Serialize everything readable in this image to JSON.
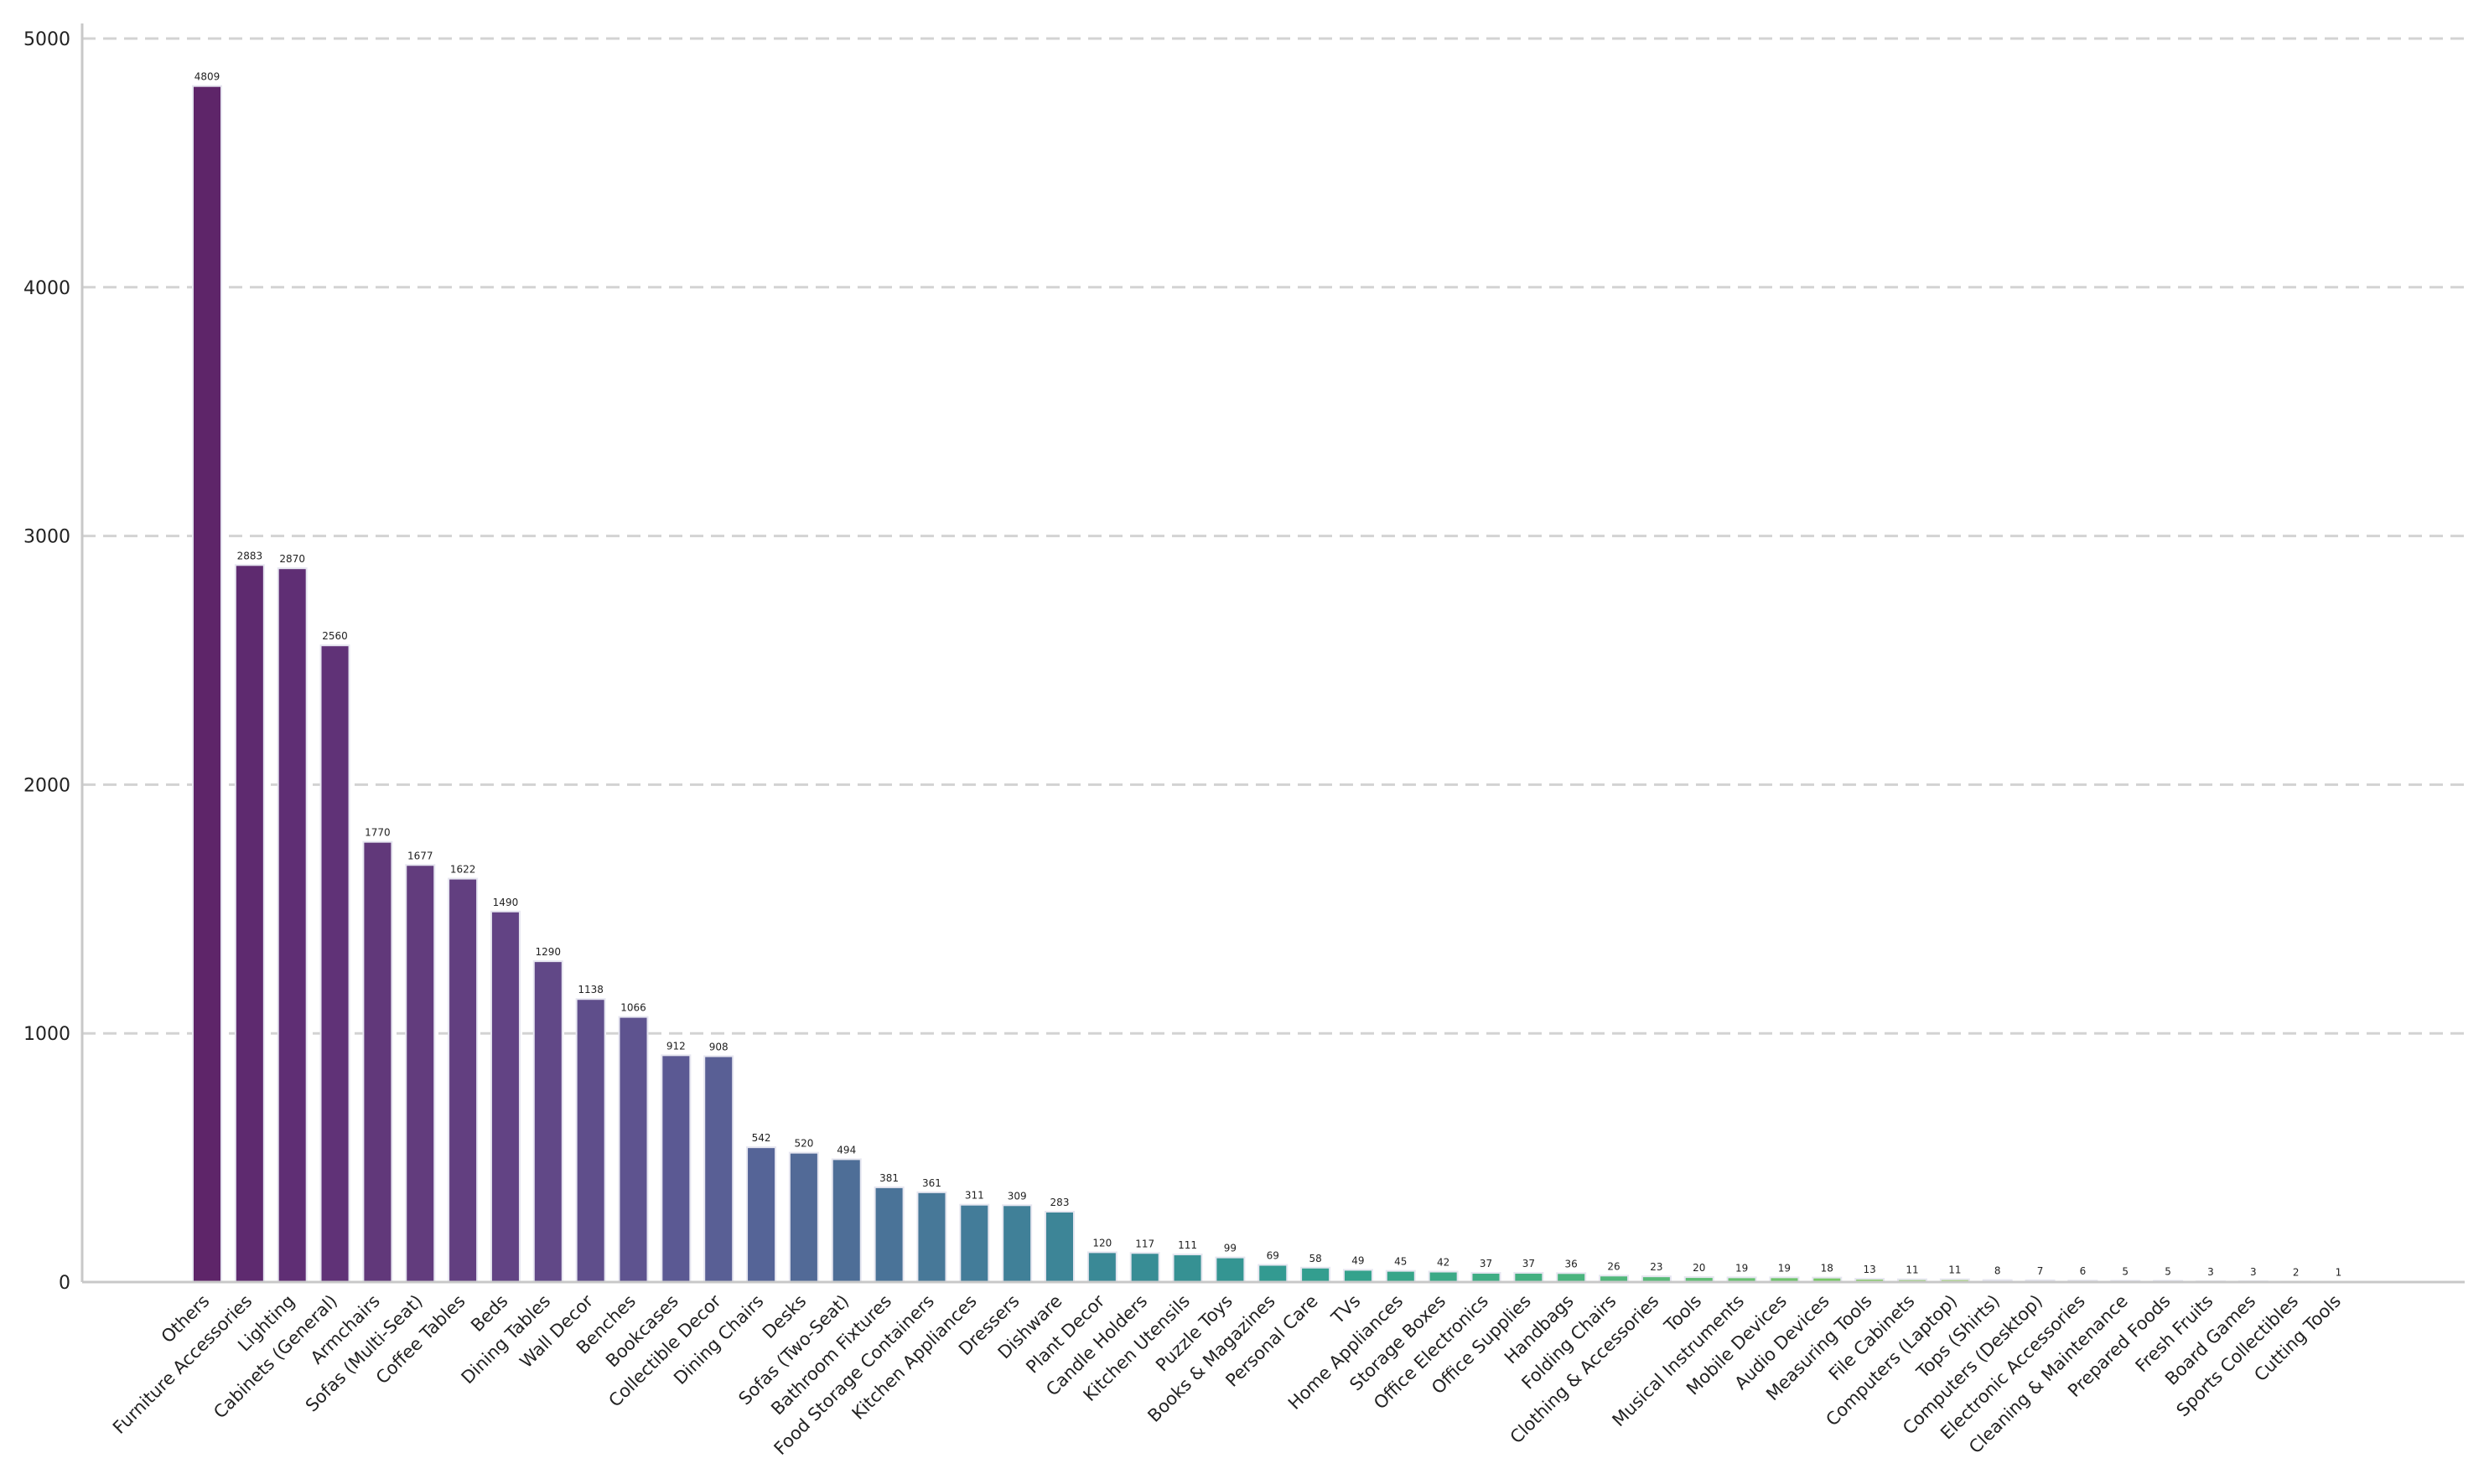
{
  "chart_data": {
    "type": "bar",
    "title": "",
    "xlabel": "",
    "ylabel": "",
    "ylim": [
      0,
      5000
    ],
    "yticks": [
      0,
      1000,
      2000,
      3000,
      4000,
      5000
    ],
    "ytick_labels": [
      "0",
      "1000",
      "2000",
      "3000",
      "4000",
      "5000"
    ],
    "grid": "horizontal dashed",
    "legend": "none",
    "color_scale": "viridis (purple to green, descending by value)",
    "categories": [
      "Others",
      "Furniture Accessories",
      "Lighting",
      "Cabinets (General)",
      "Armchairs",
      "Sofas (Multi-Seat)",
      "Coffee Tables",
      "Beds",
      "Dining Tables",
      "Wall Decor",
      "Benches",
      "Bookcases",
      "Collectible Decor",
      "Dining Chairs",
      "Desks",
      "Sofas (Two-Seat)",
      "Bathroom Fixtures",
      "Food Storage Containers",
      "Kitchen Appliances",
      "Dressers",
      "Dishware",
      "Plant Decor",
      "Candle Holders",
      "Kitchen Utensils",
      "Puzzle Toys",
      "Books & Magazines",
      "Personal Care",
      "TVs",
      "Home Appliances",
      "Storage Boxes",
      "Office Electronics",
      "Office Supplies",
      "Handbags",
      "Folding Chairs",
      "Clothing & Accessories",
      "Tools",
      "Musical Instruments",
      "Mobile Devices",
      "Audio Devices",
      "Measuring Tools",
      "File Cabinets",
      "Computers (Laptop)",
      "Tops (Shirts)",
      "Computers (Desktop)",
      "Electronic Accessories",
      "Cleaning & Maintenance",
      "Prepared Foods",
      "Fresh Fruits",
      "Board Games",
      "Sports Collectibles",
      "Cutting Tools"
    ],
    "values": [
      4809,
      2883,
      2870,
      2560,
      1770,
      1677,
      1622,
      1490,
      1290,
      1138,
      1066,
      912,
      908,
      542,
      520,
      494,
      381,
      361,
      311,
      309,
      283,
      120,
      117,
      111,
      99,
      69,
      58,
      49,
      45,
      42,
      37,
      37,
      36,
      26,
      23,
      20,
      19,
      19,
      18,
      13,
      11,
      11,
      8,
      7,
      6,
      5,
      5,
      3,
      3,
      2,
      1
    ],
    "colors": [
      "#5e2569",
      "#5e2a6f",
      "#5f2e74",
      "#603277",
      "#61387a",
      "#623c7d",
      "#623f80",
      "#624384",
      "#614887",
      "#5f4e8b",
      "#5e538f",
      "#5b5993",
      "#595f95",
      "#556497",
      "#526a97",
      "#4e6e97",
      "#4a7398",
      "#477898",
      "#437c99",
      "#408098",
      "#3d8597",
      "#3a8996",
      "#388d95",
      "#369193",
      "#349592",
      "#339a91",
      "#339e8f",
      "#34a28c",
      "#37a589",
      "#3ba987",
      "#3fad84",
      "#44b081",
      "#4ab47e",
      "#51b77b",
      "#58ba78",
      "#60be74",
      "#68c171",
      "#70c46d",
      "#79c769",
      "#82ca64",
      "#8bcd60",
      "#95cf5b",
      "#9fd257",
      "#a9d452",
      "#b3d64d",
      "#bed849",
      "#c8da44",
      "#d2dc40",
      "#dcdd3d",
      "#e6df3b",
      "#efe03a"
    ]
  }
}
